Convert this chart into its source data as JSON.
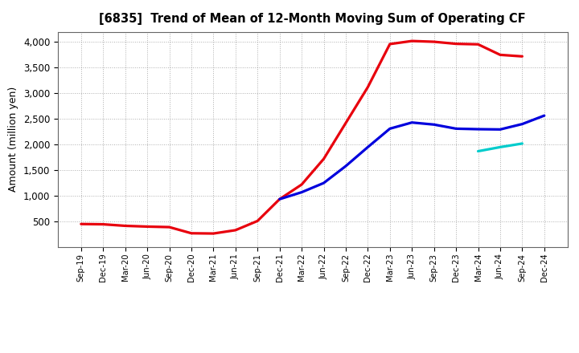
{
  "title": "[6835]  Trend of Mean of 12-Month Moving Sum of Operating CF",
  "ylabel": "Amount (million yen)",
  "background_color": "#ffffff",
  "plot_bg_color": "#ffffff",
  "grid_color": "#999999",
  "x_labels": [
    "Sep-19",
    "Dec-19",
    "Mar-20",
    "Jun-20",
    "Sep-20",
    "Dec-20",
    "Mar-21",
    "Jun-21",
    "Sep-21",
    "Dec-21",
    "Mar-22",
    "Jun-22",
    "Sep-22",
    "Dec-22",
    "Mar-23",
    "Jun-23",
    "Sep-23",
    "Dec-23",
    "Mar-24",
    "Jun-24",
    "Sep-24",
    "Dec-24"
  ],
  "ylim": [
    0,
    4200
  ],
  "yticks": [
    500,
    1000,
    1500,
    2000,
    2500,
    3000,
    3500,
    4000
  ],
  "y3": [
    450,
    445,
    415,
    400,
    390,
    270,
    265,
    330,
    510,
    935,
    1220,
    1720,
    2420,
    3120,
    3960,
    4020,
    4005,
    3965,
    3955,
    3750,
    3720,
    null
  ],
  "y5": [
    null,
    null,
    null,
    null,
    null,
    null,
    null,
    null,
    null,
    935,
    1070,
    1250,
    1580,
    1950,
    2310,
    2430,
    2390,
    2310,
    2300,
    2295,
    2400,
    2565
  ],
  "y7": [
    null,
    null,
    null,
    null,
    null,
    null,
    null,
    null,
    null,
    null,
    null,
    null,
    null,
    null,
    null,
    null,
    null,
    null,
    1870,
    1950,
    2020,
    null
  ],
  "y10": [
    null,
    null,
    null,
    null,
    null,
    null,
    null,
    null,
    null,
    null,
    null,
    null,
    null,
    null,
    null,
    null,
    null,
    null,
    null,
    null,
    null,
    null
  ],
  "color3": "#e8000d",
  "color5": "#0000dd",
  "color7": "#00cccc",
  "color10": "#008800"
}
